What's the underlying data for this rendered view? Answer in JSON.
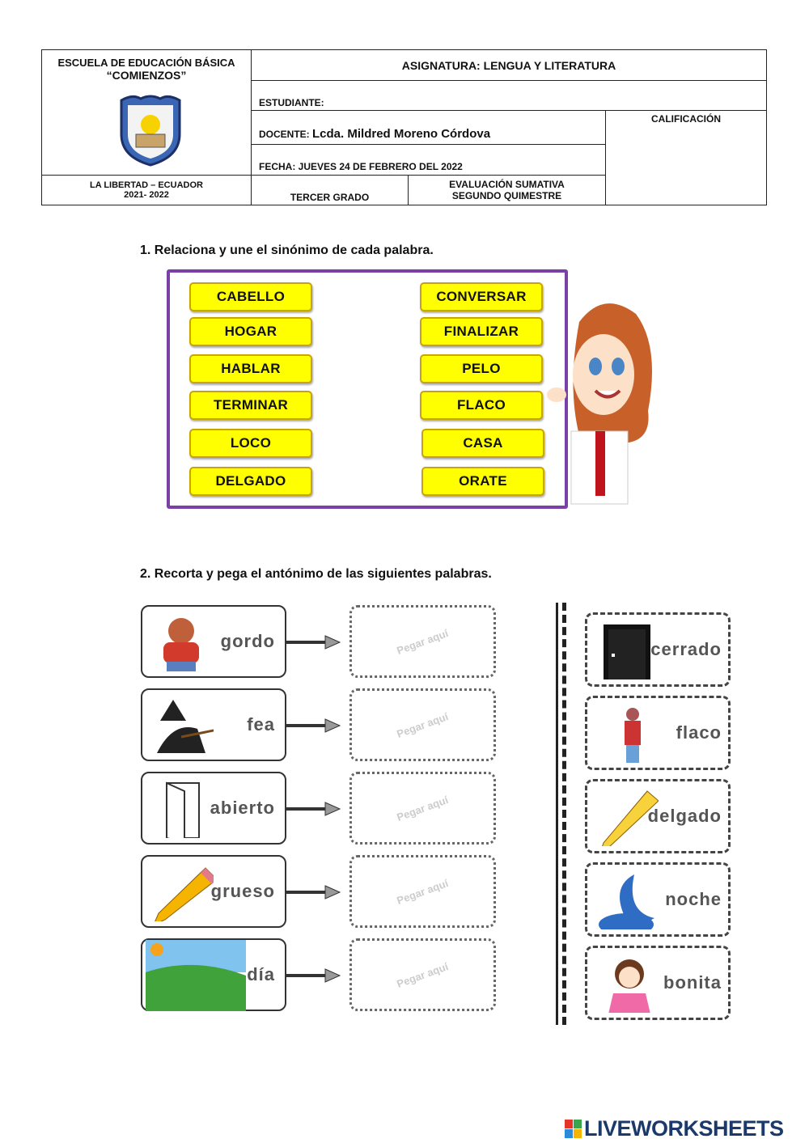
{
  "header": {
    "school_line1": "ESCUELA DE EDUCACIÓN BÁSICA",
    "school_line2": "“COMIENZOS”",
    "location": "LA LIBERTAD – ECUADOR",
    "years": "2021- 2022",
    "subject": "ASIGNATURA:  LENGUA Y LITERATURA",
    "student_label": "ESTUDIANTE:",
    "teacher_label": "DOCENTE:",
    "teacher_name": "Lcda. Mildred Moreno Córdova",
    "date": "FECHA: JUEVES 24 DE FEBRERO DEL 2022",
    "grade_label": "CALIFICACIÓN",
    "course": "TERCER GRADO",
    "eval_line1": "EVALUACIÓN SUMATIVA",
    "eval_line2": "SEGUNDO  QUIMESTRE"
  },
  "q1": {
    "title": "1.   Relaciona y une el sinónimo de cada palabra.",
    "left": [
      "CABELLO",
      "HOGAR",
      "HABLAR",
      "TERMINAR",
      "LOCO",
      "DELGADO"
    ],
    "right": [
      "CONVERSAR",
      "FINALIZAR",
      "PELO",
      "FLACO",
      "CASA",
      "ORATE"
    ],
    "box_color": "#ffff00",
    "frame_color": "#7b3fa8"
  },
  "q2": {
    "title": "2.   Recorta y pega el antónimo de las siguientes palabras.",
    "words": [
      "gordo",
      "fea",
      "abierto",
      "grueso",
      "día"
    ],
    "paste_label": "Pegar aquí",
    "cutouts": [
      "cerrado",
      "flaco",
      "delgado",
      "noche",
      "bonita"
    ]
  },
  "footer": {
    "brand": "LIVEWORKSHEETS"
  }
}
